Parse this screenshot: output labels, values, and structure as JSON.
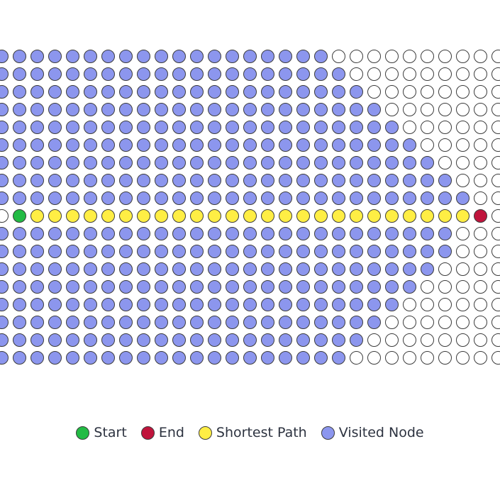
{
  "grid": {
    "rows": 18,
    "visible_cols": 29,
    "start": {
      "row": 9,
      "col": 1
    },
    "end": {
      "row": 9,
      "col": 27
    },
    "visited_count_per_row": [
      19,
      20,
      21,
      22,
      23,
      24,
      25,
      26,
      27,
      0,
      26,
      26,
      25,
      24,
      23,
      22,
      21,
      20
    ]
  },
  "colors": {
    "start": "#22bb44",
    "end": "#c0143c",
    "shortest_path": "#ffee44",
    "visited": "#8c96ee",
    "unvisited": "#ffffff"
  },
  "legend": {
    "start_label": "Start",
    "end_label": "End",
    "path_label": "Shortest Path",
    "visited_label": "Visited Node"
  }
}
